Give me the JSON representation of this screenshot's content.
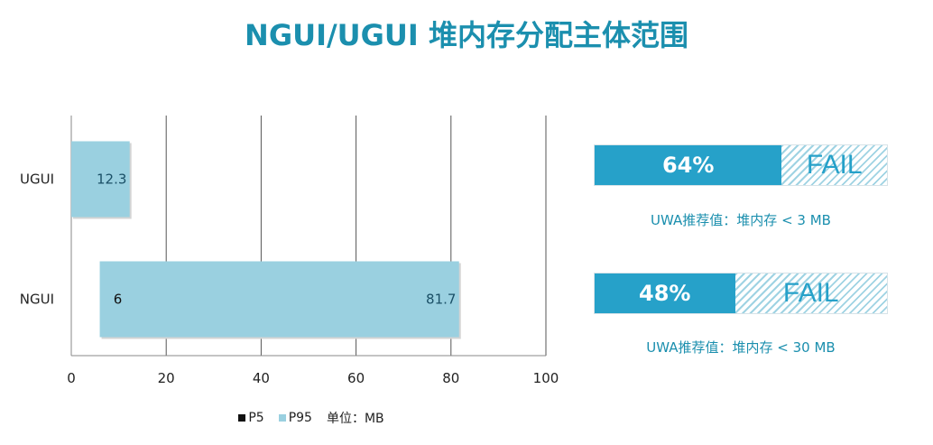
{
  "page": {
    "title": "NGUI/UGUI 堆内存分配主体范围"
  },
  "chart_data": {
    "type": "bar",
    "orientation": "horizontal",
    "categories": [
      "UGUI",
      "NGUI"
    ],
    "series": [
      {
        "name": "P5",
        "values": [
          0,
          6
        ],
        "color": "#111111"
      },
      {
        "name": "P95",
        "values": [
          12.3,
          81.7
        ],
        "color": "#9ad0e0"
      }
    ],
    "data_labels": [
      {
        "category": "UGUI",
        "p5_label": "",
        "p95_label": "12.3"
      },
      {
        "category": "NGUI",
        "p5_label": "6",
        "p95_label": "81.7"
      }
    ],
    "xlim": [
      0,
      100
    ],
    "xticks": [
      "0",
      "20",
      "40",
      "60",
      "80",
      "100"
    ],
    "grid": true,
    "legend_position": "bottom",
    "unit_label": "单位：MB"
  },
  "gauges": [
    {
      "percent_label": "64%",
      "fraction": 0.64,
      "status": "FAIL",
      "recommendation": "UWA推荐值：堆内存 < 3 MB"
    },
    {
      "percent_label": "48%",
      "fraction": 0.48,
      "status": "FAIL",
      "recommendation": "UWA推荐值：堆内存 < 30 MB"
    }
  ],
  "colors": {
    "accent": "#1b8fae",
    "gauge_fill": "#26a1c9",
    "bar": "#9ad0e0",
    "grid": "#555555"
  }
}
